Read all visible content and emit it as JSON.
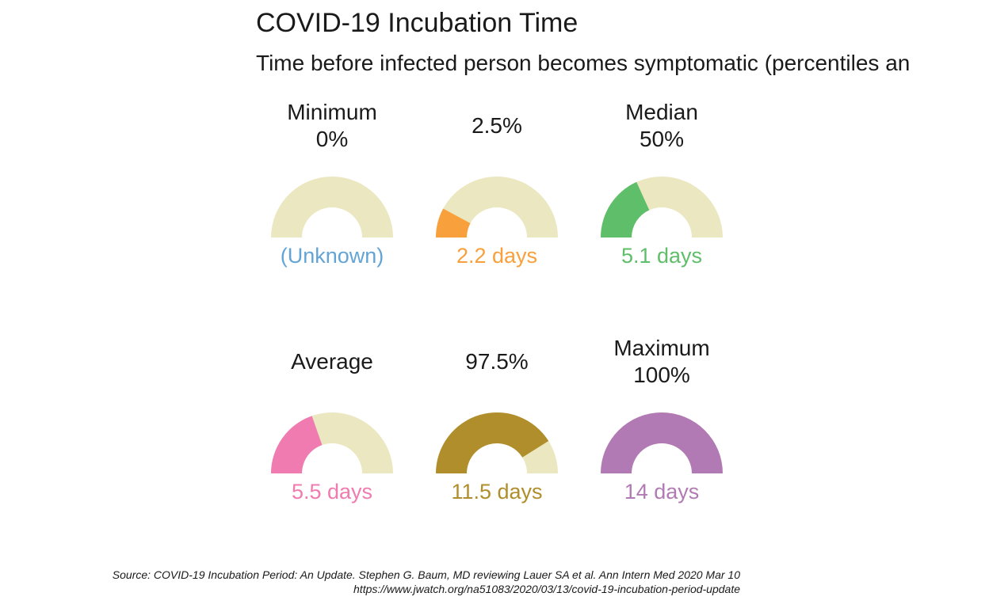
{
  "title": "COVID-19 Incubation Time",
  "subtitle": "Time before infected person becomes symptomatic (percentiles an",
  "track_color": "#ebe7c1",
  "chart_data": {
    "type": "gauge",
    "max_days": 14,
    "gauges": [
      {
        "label_lines": [
          "Minimum",
          "0%"
        ],
        "value_text": "(Unknown)",
        "days": 0,
        "color": "#63a4d6"
      },
      {
        "label_lines": [
          "2.5%"
        ],
        "value_text": "2.2 days",
        "days": 2.2,
        "color": "#f7a03c"
      },
      {
        "label_lines": [
          "Median",
          "50%"
        ],
        "value_text": "5.1 days",
        "days": 5.1,
        "color": "#5fbe69"
      },
      {
        "label_lines": [
          "Average"
        ],
        "value_text": "5.5 days",
        "days": 5.5,
        "color": "#f07bb0"
      },
      {
        "label_lines": [
          "97.5%"
        ],
        "value_text": "11.5 days",
        "days": 11.5,
        "color": "#b08e2b"
      },
      {
        "label_lines": [
          "Maximum",
          "100%"
        ],
        "value_text": "14 days",
        "days": 14,
        "color": "#b27ab4"
      }
    ]
  },
  "source_lines": [
    "Source: COVID-19 Incubation Period: An Update. Stephen G. Baum, MD reviewing Lauer SA et al. Ann Intern Med 2020 Mar 10",
    "https://www.jwatch.org/na51083/2020/03/13/covid-19-incubation-period-update"
  ]
}
